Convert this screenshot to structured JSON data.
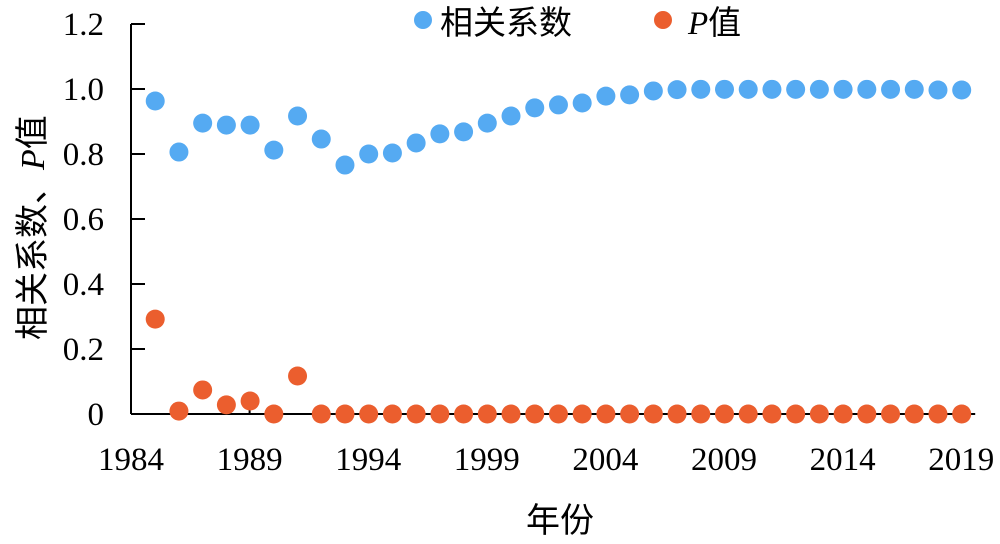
{
  "chart_data": {
    "type": "scatter",
    "title": "",
    "xlabel": "年份",
    "ylabel": "相关系数、P值",
    "ylim": [
      0,
      1.2
    ],
    "yticks": [
      "0",
      "0.2",
      "0.4",
      "0.6",
      "0.8",
      "1.0",
      "1.2"
    ],
    "xticks": [
      "1984",
      "1989",
      "1994",
      "1999",
      "2004",
      "2009",
      "2014",
      "2019"
    ],
    "grid": false,
    "legend_position": "top",
    "x": [
      1985,
      1986,
      1987,
      1988,
      1989,
      1990,
      1991,
      1992,
      1993,
      1994,
      1995,
      1996,
      1997,
      1998,
      1999,
      2000,
      2001,
      2002,
      2003,
      2004,
      2005,
      2006,
      2007,
      2008,
      2009,
      2010,
      2011,
      2012,
      2013,
      2014,
      2015,
      2016,
      2017,
      2018,
      2019
    ],
    "series": [
      {
        "name": "相关系数",
        "color": "#55aaf2",
        "values": [
          0.963,
          0.806,
          0.895,
          0.889,
          0.889,
          0.812,
          0.917,
          0.846,
          0.766,
          0.8,
          0.803,
          0.834,
          0.862,
          0.868,
          0.895,
          0.917,
          0.942,
          0.951,
          0.957,
          0.978,
          0.982,
          0.994,
          0.998,
          0.999,
          0.999,
          0.999,
          0.999,
          0.999,
          0.999,
          0.999,
          0.999,
          0.999,
          0.999,
          0.997,
          0.997
        ]
      },
      {
        "name": "P值",
        "color": "#eb5e2e",
        "values": [
          0.292,
          0.009,
          0.074,
          0.028,
          0.04,
          0.0,
          0.117,
          0.0,
          0.0,
          0.0,
          0.0,
          0.0,
          0.0,
          0.0,
          0.0,
          0.0,
          0.0,
          0.0,
          0.0,
          0.0,
          0.0,
          0.0,
          0.0,
          0.0,
          0.0,
          0.0,
          0.0,
          0.0,
          0.0,
          0.0,
          0.0,
          0.0,
          0.0,
          0.0,
          0.0
        ]
      }
    ]
  },
  "legend": {
    "items": [
      {
        "label": "相关系数",
        "color": "#55aaf2"
      },
      {
        "label_italic": "P",
        "label": "值",
        "color": "#eb5e2e"
      }
    ]
  },
  "axes": {
    "y_title_main": "相关系数、",
    "y_title_italic": "P",
    "y_title_tail": "值",
    "x_title": "年份"
  }
}
